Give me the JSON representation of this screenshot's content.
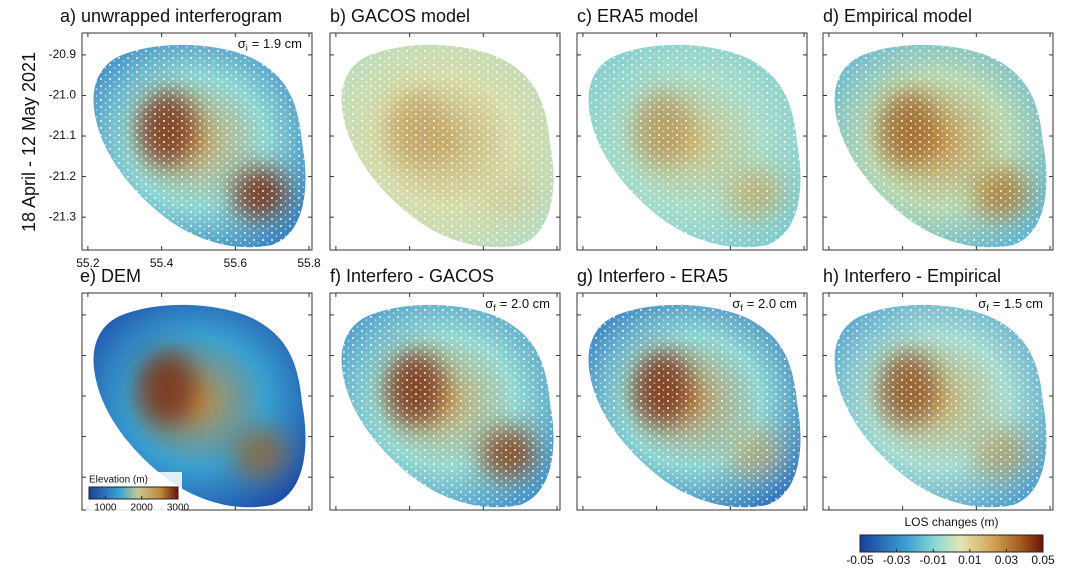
{
  "side_label": "18 April - 12 May 2021",
  "panels": [
    {
      "title": "a) unwrapped interferogram",
      "sigma": {
        "symbol": "σ",
        "subscript": "i",
        "text": "= 1.9 cm"
      }
    },
    {
      "title": "b) GACOS model"
    },
    {
      "title": "c) ERA5 model"
    },
    {
      "title": "d) Empirical model"
    },
    {
      "title": "e) DEM"
    },
    {
      "title": "f) Interfero - GACOS",
      "sigma": {
        "symbol": "σ",
        "subscript": "f",
        "text": "= 2.0 cm"
      }
    },
    {
      "title": "g) Interfero - ERA5",
      "sigma": {
        "symbol": "σ",
        "subscript": "f",
        "text": "= 2.0 cm"
      }
    },
    {
      "title": "h) Interfero - Empirical",
      "sigma": {
        "symbol": "σ",
        "subscript": "f",
        "text": "= 1.5 cm"
      }
    }
  ],
  "axes": {
    "xlim": [
      55.184,
      55.808
    ],
    "xticks": [
      55.2,
      55.4,
      55.6,
      55.8
    ],
    "ylim": [
      -21.381,
      -20.846
    ],
    "yticks": [
      -20.9,
      {
        "value": -21,
        "label": "-21.0"
      },
      -21.1,
      -21.2,
      -21.3
    ]
  },
  "los_colorbar": {
    "label": "LOS changes (m)",
    "lim": [
      -0.05,
      0.05
    ],
    "ticks": [
      -0.05,
      -0.03,
      -0.01,
      0.01,
      0.03,
      0.05
    ]
  },
  "dem_colorbar": {
    "label": "Elevation (m)",
    "lim": [
      550,
      3000
    ],
    "ticks": [
      1000,
      2000,
      3000
    ]
  }
}
